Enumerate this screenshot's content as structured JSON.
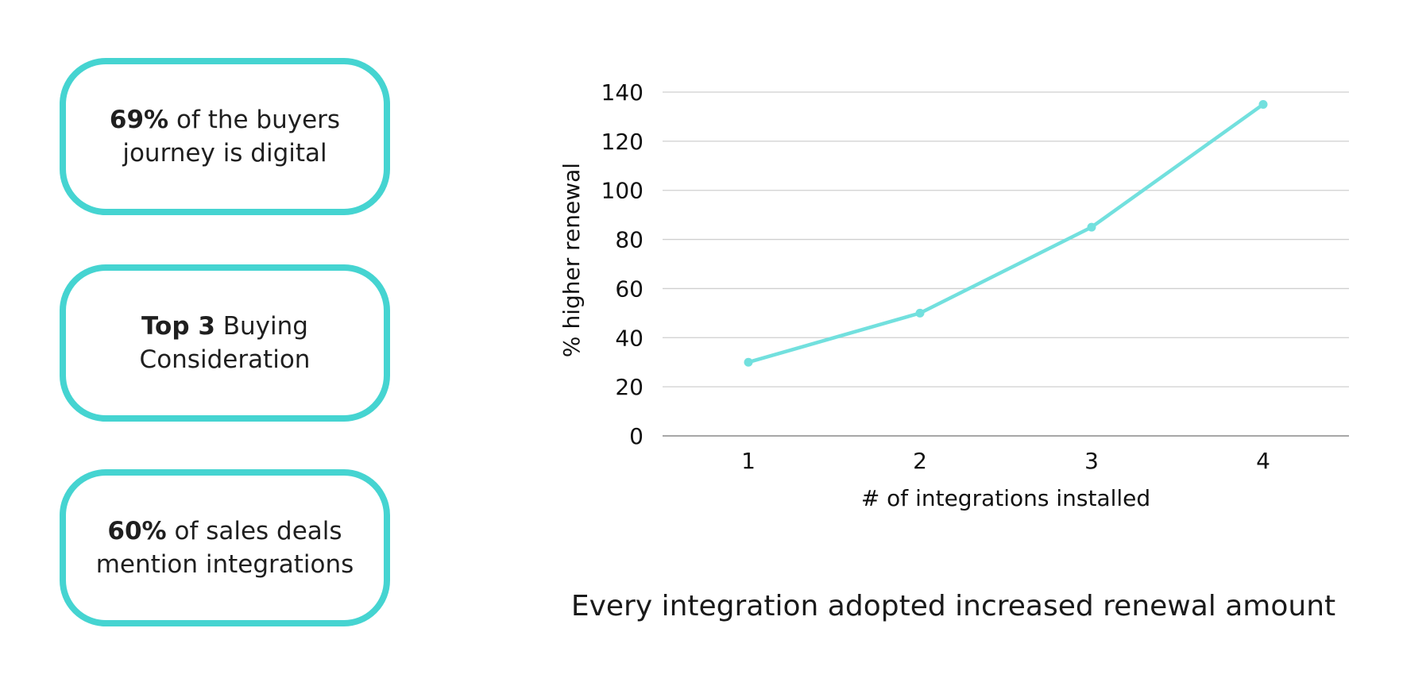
{
  "stats": [
    {
      "bold": "69%",
      "text": " of the buyers journey is digital"
    },
    {
      "bold": "Top 3",
      "text": " Buying Consideration"
    },
    {
      "bold": "60%",
      "text": " of sales deals mention integrations"
    }
  ],
  "caption": "Every integration adopted increased renewal amount",
  "colors": {
    "card_border": "#45d4d1",
    "line": "#72e0de",
    "grid": "#cfcfcf"
  },
  "chart_data": {
    "type": "line",
    "x": [
      1,
      2,
      3,
      4
    ],
    "series": [
      {
        "values": [
          30,
          50,
          85,
          135
        ]
      }
    ],
    "xlabel": "# of integrations installed",
    "ylabel": "% higher renewal",
    "ylim": [
      0,
      140
    ],
    "yticks": [
      0,
      20,
      40,
      60,
      80,
      100,
      120,
      140
    ],
    "xticks": [
      "1",
      "2",
      "3",
      "4"
    ],
    "grid": true,
    "legend": "none"
  }
}
